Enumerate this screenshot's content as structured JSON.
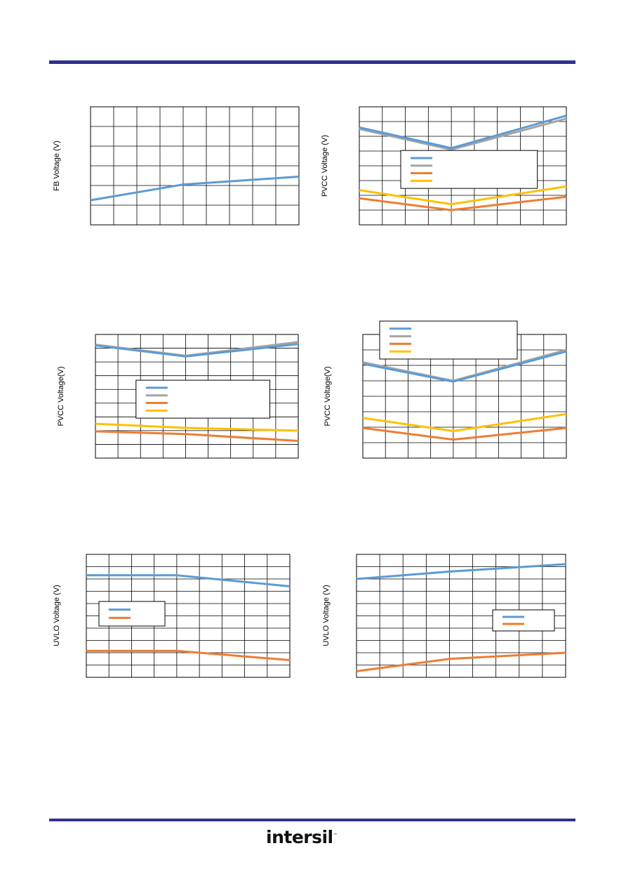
{
  "brand": {
    "logo_text": "intersil",
    "rule_color": "#2e3192"
  },
  "chart_data": [
    {
      "type": "line",
      "ylabel": "FB Voltage (V)",
      "x_steps": 9,
      "y_steps": 6,
      "ylim": [
        0,
        6
      ],
      "x": [
        0,
        4,
        9
      ],
      "series": [
        {
          "color": "#5b9bd5",
          "values": [
            1.25,
            2.05,
            2.45
          ]
        }
      ],
      "legend": null
    },
    {
      "type": "line",
      "ylabel": "PVCC Voltage (V)",
      "x_steps": 9,
      "y_steps": 8,
      "ylim": [
        0,
        8
      ],
      "x": [
        0,
        4,
        9
      ],
      "series": [
        {
          "color": "#a5a5a5",
          "values": [
            6.5,
            5.1,
            7.2
          ]
        },
        {
          "color": "#5b9bd5",
          "values": [
            6.6,
            5.2,
            7.4
          ]
        },
        {
          "color": "#ffc000",
          "values": [
            2.35,
            1.4,
            2.6
          ]
        },
        {
          "color": "#ed7d31",
          "values": [
            1.8,
            1.0,
            1.9
          ]
        }
      ],
      "legend": {
        "position": "center-right",
        "colors": [
          "#5b9bd5",
          "#a5a5a5",
          "#ed7d31",
          "#ffc000"
        ]
      }
    },
    {
      "type": "line",
      "ylabel": "PVCC Voltage(V)",
      "x_steps": 9,
      "y_steps": 9,
      "ylim": [
        0,
        9
      ],
      "x": [
        0,
        4,
        9
      ],
      "series": [
        {
          "color": "#a5a5a5",
          "values": [
            8.25,
            7.45,
            8.45
          ]
        },
        {
          "color": "#5b9bd5",
          "values": [
            8.2,
            7.4,
            8.3
          ]
        },
        {
          "color": "#ffc000",
          "values": [
            2.5,
            2.2,
            2.0
          ]
        },
        {
          "color": "#ed7d31",
          "values": [
            1.95,
            1.75,
            1.25
          ]
        }
      ],
      "legend": {
        "position": "center-right",
        "colors": [
          "#5b9bd5",
          "#a5a5a5",
          "#ed7d31",
          "#ffc000"
        ]
      }
    },
    {
      "type": "line",
      "ylabel": "PVCC Voltage(V)",
      "x_steps": 9,
      "y_steps": 8,
      "ylim": [
        0,
        8
      ],
      "x": [
        0,
        4,
        9
      ],
      "series": [
        {
          "color": "#a5a5a5",
          "values": [
            6.2,
            5.0,
            7.0
          ]
        },
        {
          "color": "#5b9bd5",
          "values": [
            6.1,
            4.95,
            6.9
          ]
        },
        {
          "color": "#ffc000",
          "values": [
            2.6,
            1.75,
            2.85
          ]
        },
        {
          "color": "#ed7d31",
          "values": [
            1.95,
            1.2,
            1.95
          ]
        }
      ],
      "legend": {
        "position": "top-left",
        "colors": [
          "#5b9bd5",
          "#a5a5a5",
          "#ed7d31",
          "#ffc000"
        ]
      }
    },
    {
      "type": "line",
      "ylabel": "UVLO Voltage (V)",
      "x_steps": 9,
      "y_steps": 10,
      "ylim": [
        0,
        10
      ],
      "x": [
        0,
        4,
        9
      ],
      "series": [
        {
          "color": "#5b9bd5",
          "values": [
            8.3,
            8.3,
            7.4
          ]
        },
        {
          "color": "#ed7d31",
          "values": [
            2.15,
            2.15,
            1.4
          ]
        }
      ],
      "legend": {
        "position": "left",
        "colors": [
          "#5b9bd5",
          "#ed7d31"
        ]
      }
    },
    {
      "type": "line",
      "ylabel": "UVLO Voltage (V)",
      "x_steps": 9,
      "y_steps": 10,
      "ylim": [
        0,
        10
      ],
      "x": [
        0,
        4,
        9
      ],
      "series": [
        {
          "color": "#5b9bd5",
          "values": [
            8.0,
            8.6,
            9.2
          ]
        },
        {
          "color": "#ed7d31",
          "values": [
            0.5,
            1.5,
            2.0
          ]
        }
      ],
      "legend": {
        "position": "right",
        "colors": [
          "#5b9bd5",
          "#ed7d31"
        ]
      }
    }
  ]
}
